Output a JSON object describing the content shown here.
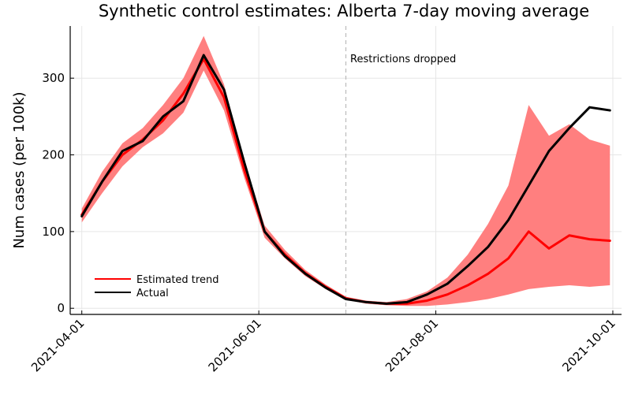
{
  "chart_data": {
    "type": "line",
    "title": "Synthetic control estimates: Alberta 7-day moving average",
    "xlabel": "",
    "ylabel": "Num cases (per 100k)",
    "xlim": [
      "2021-03-28",
      "2021-10-04"
    ],
    "ylim": [
      -8,
      368
    ],
    "x_ticks": [
      "2021-04-01",
      "2021-06-01",
      "2021-08-01",
      "2021-10-01"
    ],
    "y_ticks": [
      0,
      100,
      200,
      300
    ],
    "grid": true,
    "legend_position": "bottom-left",
    "vline": {
      "x": "2021-07-01",
      "label": "Restrictions dropped"
    },
    "series": [
      {
        "name": "Estimated trend",
        "color": "#ff0000",
        "band_color": "#ff7f7f",
        "points": [
          [
            "2021-04-01",
            122,
            112,
            130
          ],
          [
            "2021-04-08",
            165,
            150,
            178
          ],
          [
            "2021-04-15",
            200,
            185,
            215
          ],
          [
            "2021-04-22",
            220,
            210,
            235
          ],
          [
            "2021-04-29",
            245,
            228,
            265
          ],
          [
            "2021-05-06",
            280,
            255,
            300
          ],
          [
            "2021-05-13",
            325,
            310,
            355
          ],
          [
            "2021-05-20",
            275,
            258,
            292
          ],
          [
            "2021-05-27",
            180,
            170,
            192
          ],
          [
            "2021-06-03",
            100,
            92,
            108
          ],
          [
            "2021-06-10",
            70,
            65,
            76
          ],
          [
            "2021-06-17",
            46,
            42,
            50
          ],
          [
            "2021-06-24",
            28,
            25,
            31
          ],
          [
            "2021-07-01",
            13,
            11,
            15
          ],
          [
            "2021-07-08",
            8,
            6,
            10
          ],
          [
            "2021-07-15",
            6,
            4,
            8
          ],
          [
            "2021-07-22",
            6,
            3,
            12
          ],
          [
            "2021-07-29",
            10,
            3,
            22
          ],
          [
            "2021-08-05",
            18,
            5,
            40
          ],
          [
            "2021-08-12",
            30,
            8,
            70
          ],
          [
            "2021-08-19",
            45,
            12,
            110
          ],
          [
            "2021-08-26",
            65,
            18,
            160
          ],
          [
            "2021-09-02",
            100,
            25,
            265
          ],
          [
            "2021-09-09",
            78,
            28,
            225
          ],
          [
            "2021-09-16",
            95,
            30,
            240
          ],
          [
            "2021-09-23",
            90,
            28,
            220
          ],
          [
            "2021-09-30",
            88,
            30,
            212
          ]
        ]
      },
      {
        "name": "Actual",
        "color": "#000000",
        "points": [
          [
            "2021-04-01",
            120
          ],
          [
            "2021-04-08",
            165
          ],
          [
            "2021-04-15",
            205
          ],
          [
            "2021-04-22",
            218
          ],
          [
            "2021-04-29",
            250
          ],
          [
            "2021-05-06",
            270
          ],
          [
            "2021-05-13",
            330
          ],
          [
            "2021-05-20",
            285
          ],
          [
            "2021-05-27",
            190
          ],
          [
            "2021-06-03",
            100
          ],
          [
            "2021-06-10",
            68
          ],
          [
            "2021-06-17",
            45
          ],
          [
            "2021-06-24",
            27
          ],
          [
            "2021-07-01",
            12
          ],
          [
            "2021-07-08",
            8
          ],
          [
            "2021-07-15",
            6
          ],
          [
            "2021-07-22",
            8
          ],
          [
            "2021-07-29",
            18
          ],
          [
            "2021-08-05",
            32
          ],
          [
            "2021-08-12",
            55
          ],
          [
            "2021-08-19",
            80
          ],
          [
            "2021-08-26",
            115
          ],
          [
            "2021-09-02",
            160
          ],
          [
            "2021-09-09",
            205
          ],
          [
            "2021-09-16",
            235
          ],
          [
            "2021-09-23",
            262
          ],
          [
            "2021-09-30",
            258
          ]
        ]
      }
    ]
  }
}
